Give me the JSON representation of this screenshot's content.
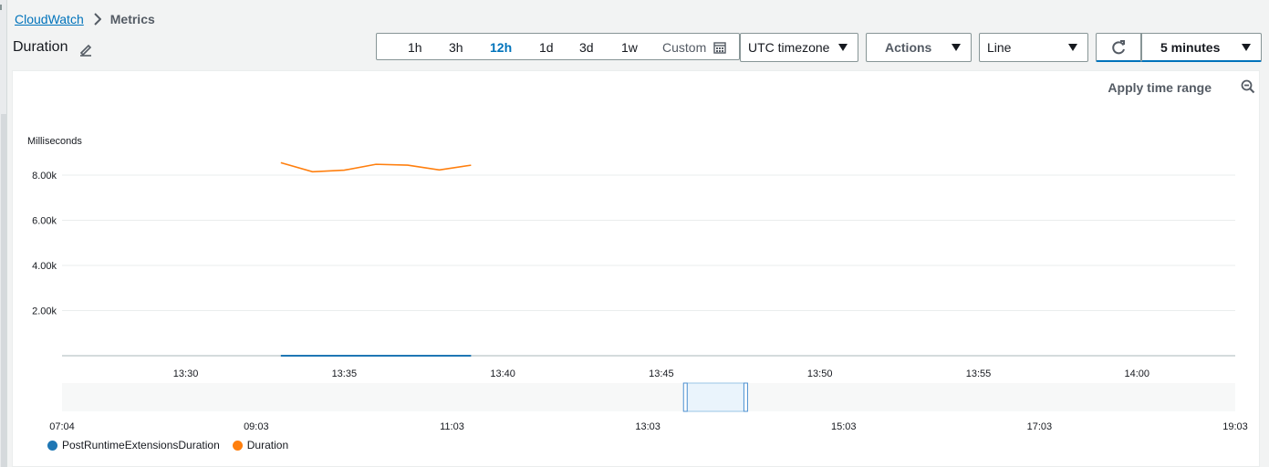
{
  "breadcrumb": {
    "root": "CloudWatch",
    "current": "Metrics"
  },
  "title": "Duration",
  "time_range": {
    "options": [
      "1h",
      "3h",
      "12h",
      "1d",
      "3d",
      "1w"
    ],
    "active": "12h",
    "custom_label": "Custom"
  },
  "timezone_label": "UTC timezone",
  "actions_label": "Actions",
  "graph_type_label": "Line",
  "refresh_interval_label": "5 minutes",
  "apply_time_range_label": "Apply time range",
  "chart_data": {
    "type": "line",
    "ylabel": "Milliseconds",
    "y_ticks": [
      "2.00k",
      "4.00k",
      "6.00k",
      "8.00k"
    ],
    "y_tick_values": [
      2000,
      4000,
      6000,
      8000
    ],
    "ylim": [
      0,
      8000
    ],
    "x_ticks": [
      "13:30",
      "13:35",
      "13:40",
      "13:45",
      "13:50",
      "13:55",
      "14:00"
    ],
    "x_tick_minutes": [
      810,
      815,
      820,
      825,
      830,
      835,
      840
    ],
    "xlim_minutes": [
      806.1,
      843.1
    ],
    "series": [
      {
        "name": "PostRuntimeExtensionsDuration",
        "color": "#1f77b4",
        "x_minutes": [
          813,
          819
        ],
        "values": [
          0,
          0
        ]
      },
      {
        "name": "Duration",
        "color": "#ff7f0e",
        "x_minutes": [
          813,
          814,
          815,
          816,
          817,
          818,
          819
        ],
        "values": [
          8550,
          8150,
          8220,
          8480,
          8440,
          8230,
          8440
        ]
      }
    ],
    "navigator": {
      "x_ticks": [
        "07:04",
        "09:03",
        "11:03",
        "13:03",
        "15:03",
        "17:03",
        "19:03"
      ],
      "x_tick_minutes": [
        424,
        543,
        663,
        783,
        903,
        1023,
        1143
      ],
      "range_minutes": [
        424,
        1143
      ],
      "window_minutes": [
        806,
        843
      ]
    },
    "grid": true,
    "legend": "bottom-left"
  }
}
